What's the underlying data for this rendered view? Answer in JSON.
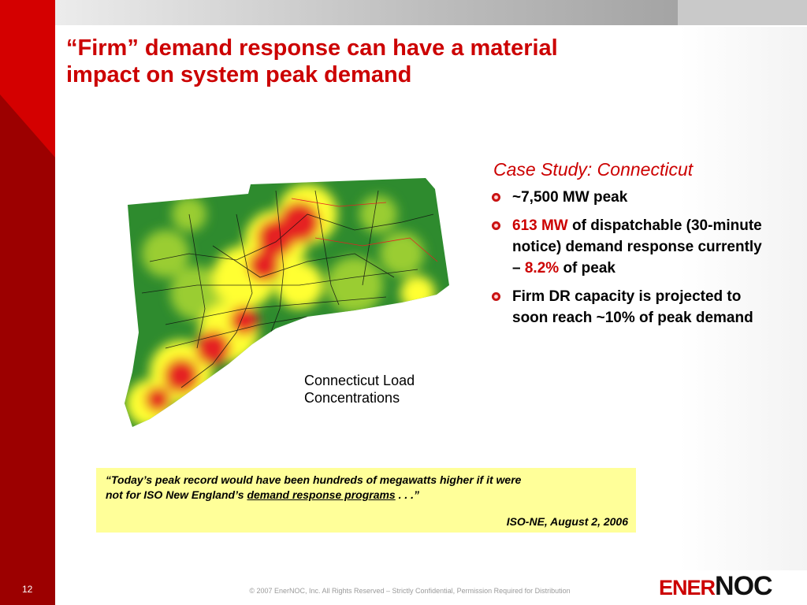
{
  "slide": {
    "title_line1": "“Firm” demand response can have a material",
    "title_line2": "impact on system peak demand",
    "page_number": "12",
    "footer": "© 2007 EnerNOC, Inc. All Rights Reserved – Strictly Confidential, Permission Required for Distribution"
  },
  "map": {
    "caption_line1": "Connecticut Load",
    "caption_line2": "Concentrations",
    "colors": {
      "base": "#2e8b2e",
      "mid": "#9acd32",
      "high": "#ffff33",
      "peak": "#e52222"
    }
  },
  "case_study": {
    "title": "Case Study: Connecticut",
    "b1": "~7,500 MW peak",
    "b2_red": "613 MW",
    "b2_text": " of dispatchable (30-minute notice) demand response currently – ",
    "b2_red2": "8.2%",
    "b2_tail": " of peak",
    "b3": "Firm DR capacity is projected to soon reach ~10% of peak demand"
  },
  "quote": {
    "line1": "“Today’s peak record would have been hundreds of megawatts higher if it were",
    "line2_pre": "not for ISO New England’s ",
    "line2_link": "demand response programs",
    "line2_post": " . . .”",
    "attribution": "ISO-NE, August 2, 2006"
  },
  "logo": {
    "part1": "ENER",
    "part2": "NOC"
  },
  "colors": {
    "accent": "#cc0000",
    "quote_bg": "#ffff99"
  }
}
